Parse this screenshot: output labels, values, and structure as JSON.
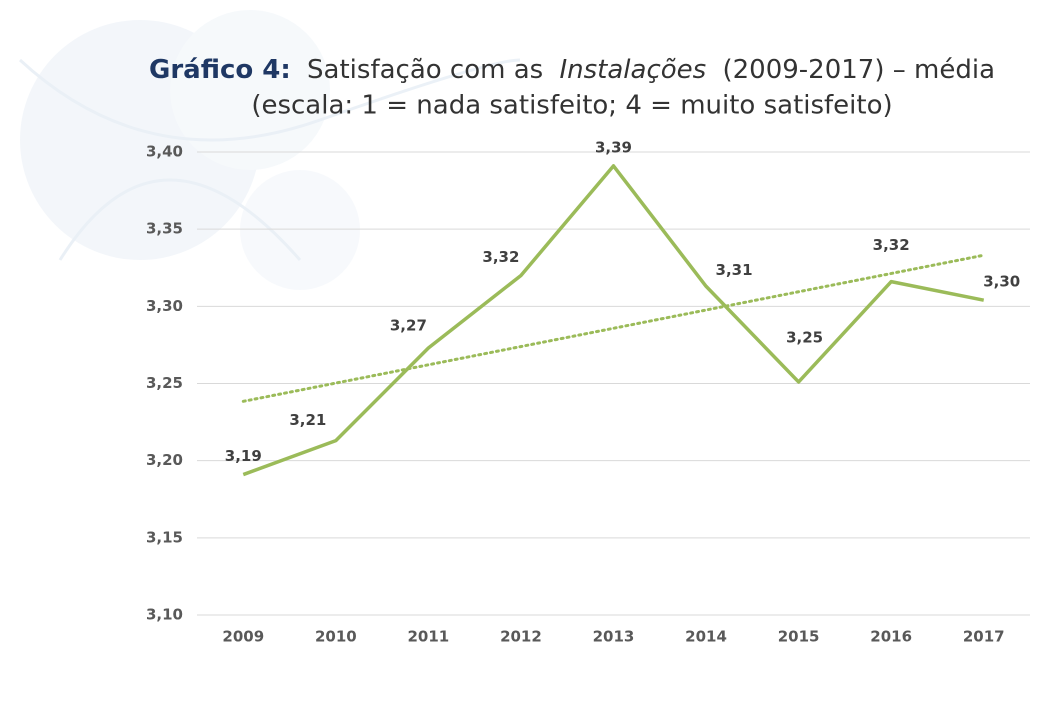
{
  "chart_data": {
    "type": "line",
    "title": [
      "Gráfico 4:",
      "Satisfação com as",
      "Instalações",
      "(2009-2017) – média"
    ],
    "subtitle": "(escala: 1 = nada satisfeito; 4 = muito satisfeito)",
    "categories": [
      "2009",
      "2010",
      "2011",
      "2012",
      "2013",
      "2014",
      "2015",
      "2016",
      "2017"
    ],
    "series": [
      {
        "color": "#9bbb59",
        "values": [
          3.191,
          3.213,
          3.273,
          3.32,
          3.391,
          3.313,
          3.251,
          3.316,
          3.304
        ],
        "value_labels": [
          "3,19",
          "3,21",
          "3,27",
          "3,32",
          "3,39",
          "3,31",
          "3,25",
          "3,32",
          "3,30"
        ]
      }
    ],
    "trendline": "linear",
    "ylim": [
      3.1,
      3.4
    ],
    "yticks": [
      {
        "value": 3.1,
        "label": "3,10"
      },
      {
        "value": 3.15,
        "label": "3,15"
      },
      {
        "value": 3.2,
        "label": "3,20"
      },
      {
        "value": 3.25,
        "label": "3,25"
      },
      {
        "value": 3.3,
        "label": "3,30"
      },
      {
        "value": 3.35,
        "label": "3,35"
      },
      {
        "value": 3.4,
        "label": "3,40"
      }
    ],
    "grid": true
  }
}
